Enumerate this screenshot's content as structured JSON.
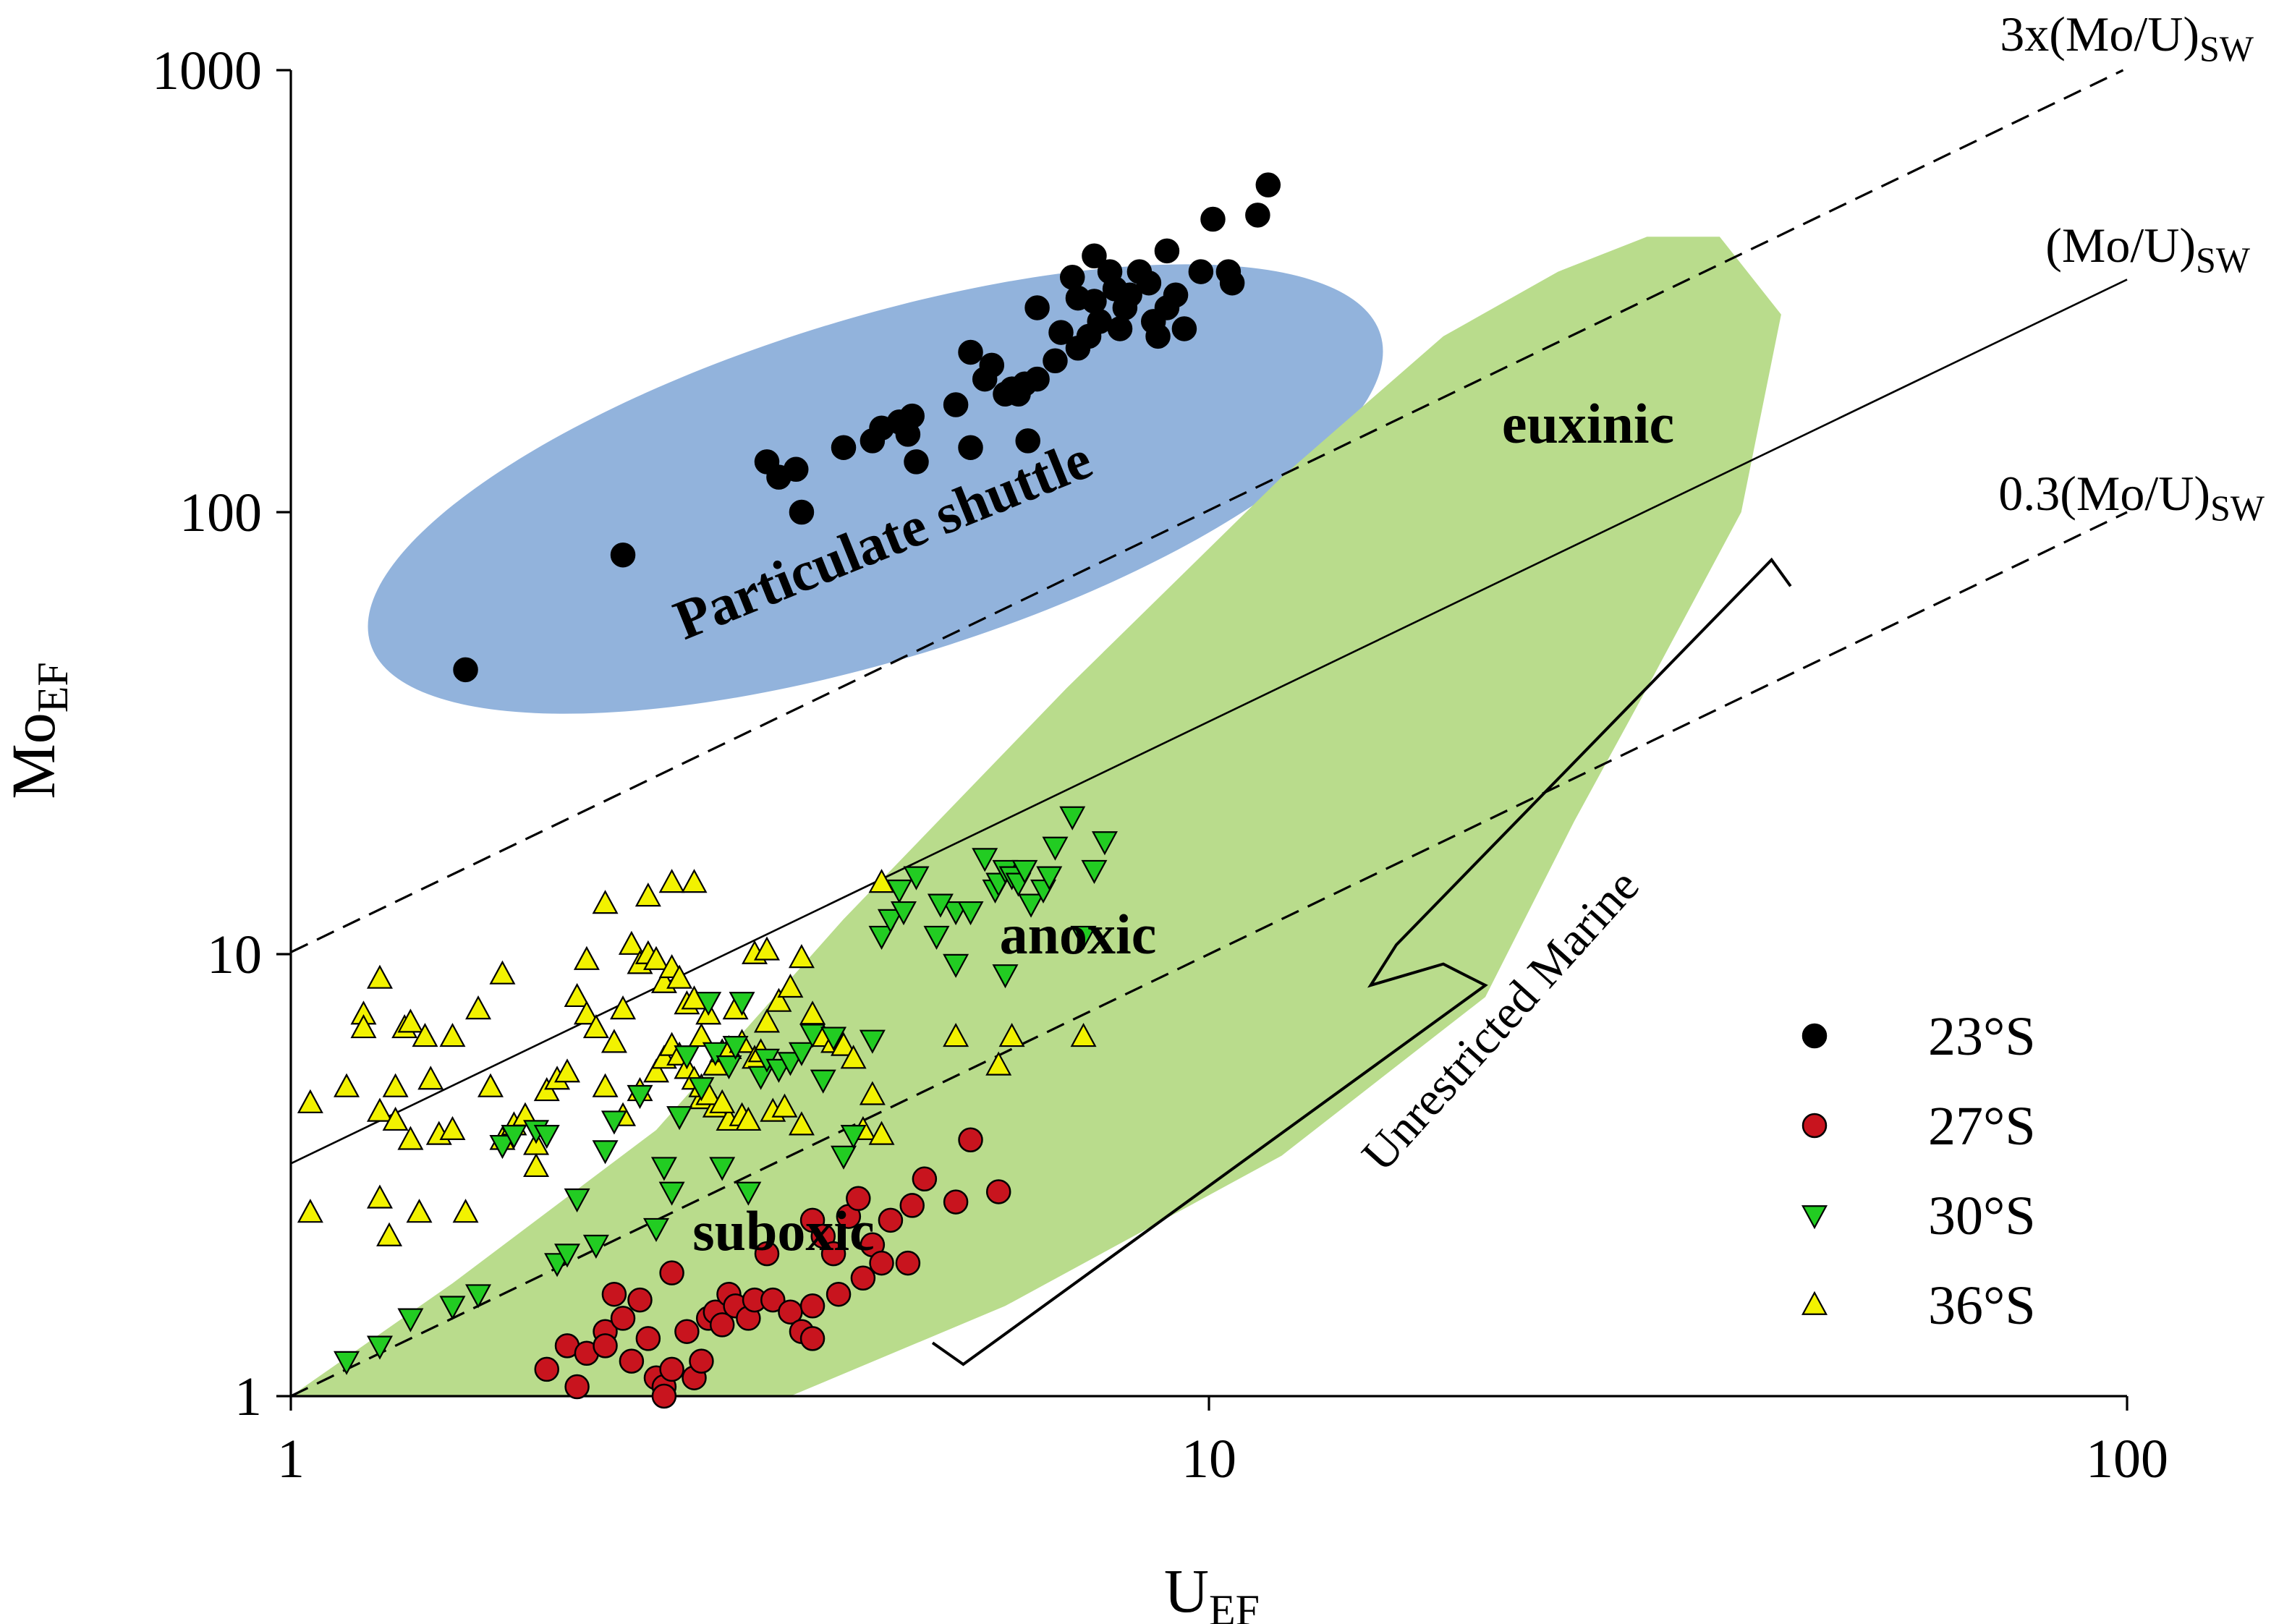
{
  "chart_data": {
    "type": "scatter",
    "x_scale": "log",
    "y_scale": "log",
    "xlim": [
      1,
      100
    ],
    "ylim": [
      1,
      1000
    ],
    "x_ticks": [
      "1",
      "10",
      "100"
    ],
    "y_ticks": [
      "1",
      "10",
      "100",
      "1000"
    ],
    "xlabel": {
      "main": "U",
      "sub": "EF"
    },
    "ylabel": {
      "main": "Mo",
      "sub": "EF"
    },
    "grid": false,
    "legend_position": "bottom-right",
    "colors": {
      "s23": "#000000",
      "s27": "#c8141e",
      "s30": "#22cc22",
      "s36": "#f2f200",
      "particulate": "#7fa6d6",
      "euxinic_field": "#b9dc8c"
    },
    "reference_lines": [
      {
        "label": "3x(Mo/U)",
        "sub": "SW",
        "ratio": 10.1,
        "style": "dashed"
      },
      {
        "label": "(Mo/U)",
        "sub": "SW",
        "ratio": 3.36,
        "style": "solid"
      },
      {
        "label": "0.3(Mo/U)",
        "sub": "SW",
        "ratio": 1.0,
        "style": "dashed"
      }
    ],
    "regions": {
      "particulate": "Particulate shuttle",
      "euxinic": "euxinic",
      "anoxic": "anoxic",
      "suboxic": "suboxic",
      "unrestricted": "Unrestricted Marine"
    },
    "series": [
      {
        "name": "23°S",
        "marker": "circle",
        "points": [
          [
            1.55,
            44
          ],
          [
            2.3,
            80
          ],
          [
            3.3,
            130
          ],
          [
            3.4,
            120
          ],
          [
            3.55,
            125
          ],
          [
            3.6,
            100
          ],
          [
            4.0,
            140
          ],
          [
            4.3,
            145
          ],
          [
            4.4,
            155
          ],
          [
            4.6,
            160
          ],
          [
            4.7,
            150
          ],
          [
            4.75,
            165
          ],
          [
            4.8,
            130
          ],
          [
            5.3,
            175
          ],
          [
            5.5,
            140
          ],
          [
            5.5,
            230
          ],
          [
            5.7,
            200
          ],
          [
            5.8,
            215
          ],
          [
            6.0,
            185
          ],
          [
            6.1,
            190
          ],
          [
            6.2,
            185
          ],
          [
            6.3,
            195
          ],
          [
            6.35,
            145
          ],
          [
            6.5,
            200
          ],
          [
            6.5,
            290
          ],
          [
            6.8,
            220
          ],
          [
            6.9,
            255
          ],
          [
            7.1,
            340
          ],
          [
            7.2,
            305
          ],
          [
            7.2,
            235
          ],
          [
            7.4,
            250
          ],
          [
            7.5,
            380
          ],
          [
            7.5,
            300
          ],
          [
            7.6,
            270
          ],
          [
            7.8,
            350
          ],
          [
            7.9,
            320
          ],
          [
            8.0,
            260
          ],
          [
            8.1,
            290
          ],
          [
            8.2,
            310
          ],
          [
            8.4,
            350
          ],
          [
            8.6,
            330
          ],
          [
            8.7,
            270
          ],
          [
            8.8,
            250
          ],
          [
            9.0,
            290
          ],
          [
            9.2,
            310
          ],
          [
            9.4,
            260
          ],
          [
            9.0,
            390
          ],
          [
            9.8,
            350
          ],
          [
            10.5,
            350
          ],
          [
            10.6,
            330
          ],
          [
            10.1,
            460
          ],
          [
            11.3,
            470
          ],
          [
            11.6,
            550
          ]
        ]
      },
      {
        "name": "27°S",
        "marker": "circle",
        "points": [
          [
            1.9,
            1.15
          ],
          [
            2.0,
            1.3
          ],
          [
            2.05,
            1.05
          ],
          [
            2.1,
            1.25
          ],
          [
            2.2,
            1.4
          ],
          [
            2.2,
            1.3
          ],
          [
            2.25,
            1.7
          ],
          [
            2.3,
            1.5
          ],
          [
            2.35,
            1.2
          ],
          [
            2.4,
            1.65
          ],
          [
            2.45,
            1.35
          ],
          [
            2.5,
            1.1
          ],
          [
            2.55,
            1.05
          ],
          [
            2.55,
            1.0
          ],
          [
            2.6,
            1.15
          ],
          [
            2.6,
            1.9
          ],
          [
            2.7,
            1.4
          ],
          [
            2.75,
            1.1
          ],
          [
            2.8,
            1.2
          ],
          [
            2.85,
            1.5
          ],
          [
            2.9,
            1.55
          ],
          [
            2.95,
            1.45
          ],
          [
            3.0,
            1.7
          ],
          [
            3.05,
            1.6
          ],
          [
            3.15,
            1.5
          ],
          [
            3.2,
            1.65
          ],
          [
            3.3,
            2.1
          ],
          [
            3.35,
            1.65
          ],
          [
            3.5,
            1.55
          ],
          [
            3.6,
            1.4
          ],
          [
            3.7,
            1.35
          ],
          [
            3.7,
            1.6
          ],
          [
            3.7,
            2.5
          ],
          [
            3.8,
            2.3
          ],
          [
            3.9,
            2.1
          ],
          [
            3.95,
            1.7
          ],
          [
            4.05,
            2.55
          ],
          [
            4.15,
            2.8
          ],
          [
            4.2,
            1.85
          ],
          [
            4.3,
            2.2
          ],
          [
            4.4,
            2.0
          ],
          [
            4.5,
            2.5
          ],
          [
            4.7,
            2.0
          ],
          [
            4.75,
            2.7
          ],
          [
            4.9,
            3.1
          ],
          [
            5.3,
            2.75
          ],
          [
            5.5,
            3.8
          ],
          [
            5.9,
            2.9
          ]
        ]
      },
      {
        "name": "30°S",
        "marker": "triangle-down",
        "points": [
          [
            1.15,
            1.2
          ],
          [
            1.25,
            1.3
          ],
          [
            1.35,
            1.5
          ],
          [
            1.5,
            1.6
          ],
          [
            1.6,
            1.7
          ],
          [
            1.7,
            3.7
          ],
          [
            1.75,
            3.9
          ],
          [
            1.85,
            4.0
          ],
          [
            1.9,
            3.9
          ],
          [
            1.95,
            2.0
          ],
          [
            2.0,
            2.1
          ],
          [
            2.05,
            2.8
          ],
          [
            2.15,
            2.2
          ],
          [
            2.2,
            3.6
          ],
          [
            2.25,
            4.2
          ],
          [
            2.4,
            4.8
          ],
          [
            2.5,
            2.4
          ],
          [
            2.55,
            3.3
          ],
          [
            2.6,
            2.9
          ],
          [
            2.65,
            4.3
          ],
          [
            2.7,
            5.9
          ],
          [
            2.8,
            5.0
          ],
          [
            2.85,
            7.8
          ],
          [
            2.9,
            6.0
          ],
          [
            2.95,
            3.3
          ],
          [
            3.0,
            5.6
          ],
          [
            3.05,
            6.2
          ],
          [
            3.1,
            7.8
          ],
          [
            3.15,
            2.9
          ],
          [
            3.25,
            5.3
          ],
          [
            3.3,
            5.8
          ],
          [
            3.4,
            5.5
          ],
          [
            3.5,
            5.7
          ],
          [
            3.6,
            6.0
          ],
          [
            3.7,
            6.6
          ],
          [
            3.8,
            5.2
          ],
          [
            3.9,
            6.5
          ],
          [
            4.0,
            3.5
          ],
          [
            4.1,
            3.9
          ],
          [
            4.3,
            6.4
          ],
          [
            4.4,
            11.0
          ],
          [
            4.5,
            12.0
          ],
          [
            4.6,
            14.0
          ],
          [
            4.65,
            12.5
          ],
          [
            4.8,
            15.0
          ],
          [
            5.05,
            11.0
          ],
          [
            5.3,
            12.5
          ],
          [
            5.5,
            12.5
          ],
          [
            5.7,
            16.5
          ],
          [
            5.85,
            14.0
          ],
          [
            5.9,
            14.5
          ],
          [
            6.0,
            15.5
          ],
          [
            6.1,
            15.0
          ],
          [
            6.2,
            14.5
          ],
          [
            6.3,
            15.5
          ],
          [
            6.4,
            13.0
          ],
          [
            6.6,
            14.0
          ],
          [
            6.7,
            15.0
          ],
          [
            6.8,
            17.5
          ],
          [
            7.1,
            20.5
          ],
          [
            7.3,
            11.0
          ],
          [
            7.5,
            15.5
          ],
          [
            7.7,
            18.0
          ],
          [
            5.3,
            9.5
          ],
          [
            6.0,
            9.0
          ],
          [
            5.1,
            13.0
          ]
        ]
      },
      {
        "name": "36°S",
        "marker": "triangle-up",
        "points": [
          [
            1.05,
            4.6
          ],
          [
            1.05,
            2.6
          ],
          [
            1.15,
            5.0
          ],
          [
            1.2,
            7.3
          ],
          [
            1.2,
            6.8
          ],
          [
            1.25,
            8.8
          ],
          [
            1.25,
            4.4
          ],
          [
            1.25,
            2.8
          ],
          [
            1.28,
            2.3
          ],
          [
            1.3,
            4.2
          ],
          [
            1.33,
            6.8
          ],
          [
            1.35,
            7.0
          ],
          [
            1.35,
            3.8
          ],
          [
            1.38,
            2.6
          ],
          [
            1.4,
            6.5
          ],
          [
            1.42,
            5.2
          ],
          [
            1.45,
            3.9
          ],
          [
            1.5,
            4.0
          ],
          [
            1.55,
            2.6
          ],
          [
            1.6,
            7.5
          ],
          [
            1.65,
            5.0
          ],
          [
            1.7,
            9.0
          ],
          [
            1.7,
            3.8
          ],
          [
            1.75,
            4.1
          ],
          [
            1.8,
            4.3
          ],
          [
            1.85,
            3.7
          ],
          [
            1.85,
            3.3
          ],
          [
            1.9,
            4.9
          ],
          [
            1.95,
            5.2
          ],
          [
            2.0,
            5.4
          ],
          [
            2.05,
            8.0
          ],
          [
            2.1,
            9.7
          ],
          [
            2.1,
            7.3
          ],
          [
            2.15,
            6.8
          ],
          [
            2.2,
            13.0
          ],
          [
            2.25,
            6.3
          ],
          [
            2.3,
            7.5
          ],
          [
            2.35,
            10.5
          ],
          [
            2.4,
            9.5
          ],
          [
            2.45,
            10.0
          ],
          [
            2.5,
            9.7
          ],
          [
            2.55,
            8.6
          ],
          [
            2.6,
            9.3
          ],
          [
            2.65,
            8.8
          ],
          [
            2.7,
            7.7
          ],
          [
            2.75,
            7.9
          ],
          [
            2.8,
            6.5
          ],
          [
            2.85,
            7.3
          ],
          [
            2.9,
            5.6
          ],
          [
            2.95,
            6.0
          ],
          [
            3.0,
            6.1
          ],
          [
            3.05,
            7.5
          ],
          [
            3.1,
            6.3
          ],
          [
            3.2,
            5.8
          ],
          [
            3.25,
            6.0
          ],
          [
            3.3,
            7.0
          ],
          [
            3.4,
            7.8
          ],
          [
            3.5,
            8.4
          ],
          [
            3.6,
            9.8
          ],
          [
            3.7,
            7.3
          ],
          [
            3.8,
            6.5
          ],
          [
            3.9,
            6.3
          ],
          [
            4.0,
            6.2
          ],
          [
            4.1,
            5.8
          ],
          [
            4.2,
            4.0
          ],
          [
            4.3,
            4.8
          ],
          [
            4.4,
            3.9
          ],
          [
            2.45,
            13.5
          ],
          [
            2.6,
            14.5
          ],
          [
            2.75,
            14.5
          ],
          [
            3.2,
            10.0
          ],
          [
            3.3,
            10.2
          ],
          [
            2.8,
            4.7
          ],
          [
            2.9,
            4.5
          ],
          [
            3.0,
            4.2
          ],
          [
            3.1,
            4.3
          ],
          [
            4.4,
            14.5
          ],
          [
            2.2,
            5.0
          ],
          [
            2.3,
            4.3
          ],
          [
            2.4,
            4.9
          ],
          [
            2.5,
            5.4
          ],
          [
            2.55,
            5.8
          ],
          [
            2.6,
            6.2
          ],
          [
            2.65,
            5.9
          ],
          [
            2.7,
            5.5
          ],
          [
            2.75,
            5.2
          ],
          [
            2.8,
            5.0
          ],
          [
            2.85,
            4.8
          ],
          [
            2.95,
            4.6
          ],
          [
            3.15,
            4.2
          ],
          [
            3.35,
            4.4
          ],
          [
            3.45,
            4.5
          ],
          [
            3.6,
            4.1
          ],
          [
            5.3,
            6.5
          ],
          [
            5.9,
            5.6
          ],
          [
            6.1,
            6.5
          ],
          [
            7.3,
            6.5
          ],
          [
            1.3,
            5.0
          ],
          [
            1.5,
            6.5
          ]
        ]
      }
    ]
  }
}
